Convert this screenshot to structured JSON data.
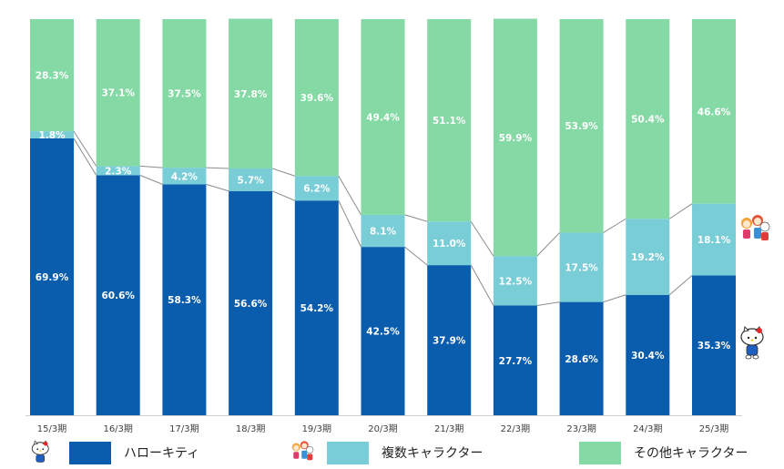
{
  "chart_data": {
    "type": "bar",
    "stacked": true,
    "normalized": true,
    "categories": [
      "15/3期",
      "16/3期",
      "17/3期",
      "18/3期",
      "19/3期",
      "20/3期",
      "21/3期",
      "22/3期",
      "23/3期",
      "24/3期",
      "25/3期"
    ],
    "series": [
      {
        "name": "ハローキティ",
        "color": "#0a5cad",
        "values": [
          69.9,
          60.6,
          58.3,
          56.6,
          54.2,
          42.5,
          37.9,
          27.7,
          28.6,
          30.4,
          35.3
        ],
        "labels": [
          "69.9%",
          "60.6%",
          "58.3%",
          "56.6%",
          "54.2%",
          "42.5%",
          "37.9%",
          "27.7%",
          "28.6%",
          "30.4%",
          "35.3%"
        ]
      },
      {
        "name": "複数キャラクター",
        "color": "#78cdd7",
        "values": [
          1.8,
          2.3,
          4.2,
          5.7,
          6.2,
          8.1,
          11.0,
          12.5,
          17.5,
          19.2,
          18.1
        ],
        "labels": [
          "1.8%",
          "2.3%",
          "4.2%",
          "5.7%",
          "6.2%",
          "8.1%",
          "11.0%",
          "12.5%",
          "17.5%",
          "19.2%",
          "18.1%"
        ]
      },
      {
        "name": "その他キャラクター",
        "color": "#84d9a4",
        "values": [
          28.3,
          37.1,
          37.5,
          37.8,
          39.6,
          49.4,
          51.1,
          59.9,
          53.9,
          50.4,
          46.6
        ],
        "labels": [
          "28.3%",
          "37.1%",
          "37.5%",
          "37.8%",
          "39.6%",
          "49.4%",
          "51.1%",
          "59.9%",
          "53.9%",
          "50.4%",
          "46.6%"
        ]
      }
    ],
    "ylim": [
      0,
      100
    ],
    "legend": "bottom",
    "connector_lines": true
  },
  "legend": {
    "kitty_label": "ハローキティ",
    "multi_label": "複数キャラクター",
    "other_label": "その他キャラクター"
  },
  "icons": {
    "kitty": "hello-kitty-icon",
    "characters": "character-group-icon"
  }
}
